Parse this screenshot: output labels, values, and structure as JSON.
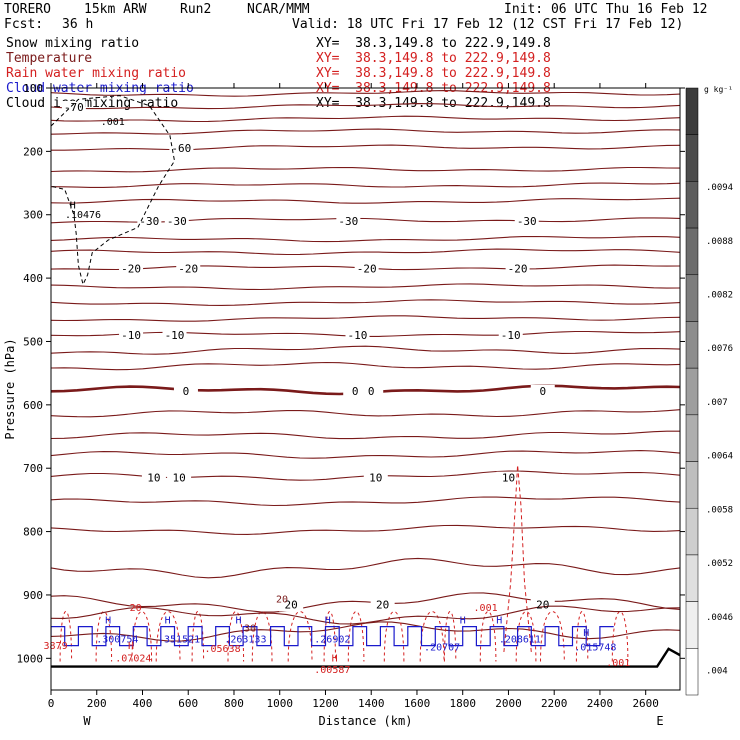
{
  "header": {
    "model": "TORERO",
    "resolution": "15km ARW",
    "run": "Run2",
    "center": "NCAR/MMM",
    "init": "Init: 06 UTC Thu 16 Feb 12",
    "fcst_label": "Fcst:",
    "fcst_value": "36 h",
    "valid": "Valid: 18 UTC Fri 17 Feb 12 (12 CST Fri 17 Feb 12)"
  },
  "colors": {
    "snow": "#000000",
    "temperature": "#7a1a1a",
    "rain": "#d42020",
    "cloud_water": "#1a1acc",
    "cloud_ice": "#000000"
  },
  "fields": [
    {
      "name": "Snow mixing ratio",
      "xy": "XY=  38.3,149.8 to 222.9,149.8",
      "color_key": "snow"
    },
    {
      "name": "Temperature",
      "xy": "XY=  38.3,149.8 to 222.9,149.8",
      "color_key": "temperature"
    },
    {
      "name": "Rain water mixing ratio",
      "xy": "XY=  38.3,149.8 to 222.9,149.8",
      "color_key": "rain"
    },
    {
      "name": "Cloud water mixing ratio",
      "xy": "XY=  38.3,149.8 to 222.9,149.8",
      "color_key": "cloud_water"
    },
    {
      "name": "Cloud ice mixing ratio",
      "xy": "XY=  38.3,149.8 to 222.9,149.8",
      "color_key": "cloud_ice"
    }
  ],
  "chart_data": {
    "type": "cross-section contour",
    "xlabel": "Distance (km)",
    "ylabel": "Pressure (hPa)",
    "xlim": [
      0,
      2750
    ],
    "ylim": [
      1050,
      100
    ],
    "x_ticks": [
      0,
      200,
      400,
      600,
      800,
      1000,
      1200,
      1400,
      1600,
      1800,
      2000,
      2200,
      2400,
      2600
    ],
    "y_ticks": [
      100,
      200,
      300,
      400,
      500,
      600,
      700,
      800,
      900,
      1000
    ],
    "x_end_labels": {
      "left": "W",
      "right": "E"
    },
    "temperature_contours": [
      {
        "level": -70,
        "p": 130,
        "label_at": [
          100
        ]
      },
      {
        "level": -60,
        "p": 195,
        "label_at": [
          570
        ]
      },
      {
        "level": -30,
        "p": 310,
        "label_at": [
          430,
          550,
          1300,
          2080
        ]
      },
      {
        "level": -20,
        "p": 385,
        "label_at": [
          350,
          600,
          1380,
          2040
        ]
      },
      {
        "level": -10,
        "p": 490,
        "label_at": [
          350,
          540,
          1340,
          2010
        ]
      },
      {
        "level": 0,
        "p": 578,
        "label_at": [
          590,
          1330,
          1400,
          2150
        ]
      },
      {
        "level": 10,
        "p": 715,
        "label_at": [
          450,
          560,
          1420,
          2000
        ]
      },
      {
        "level": 20,
        "p": 915,
        "label_at": [
          1050,
          1450,
          2150
        ]
      }
    ],
    "temperature_other_levels": [
      {
        "p": 110
      },
      {
        "p": 150
      },
      {
        "p": 170
      },
      {
        "p": 230
      },
      {
        "p": 255
      },
      {
        "p": 280
      },
      {
        "p": 340
      },
      {
        "p": 360
      },
      {
        "p": 415
      },
      {
        "p": 440
      },
      {
        "p": 465
      },
      {
        "p": 515
      },
      {
        "p": 540
      },
      {
        "p": 615
      },
      {
        "p": 650
      },
      {
        "p": 680
      },
      {
        "p": 755
      },
      {
        "p": 800
      },
      {
        "p": 860
      },
      {
        "p": 960
      }
    ],
    "annotations": [
      {
        "text": ".001",
        "x": 270,
        "p": 158,
        "color_key": "snow"
      },
      {
        "text": "H",
        "x": 95,
        "p": 290,
        "color_key": "snow"
      },
      {
        "text": ".10476",
        "x": 140,
        "p": 305,
        "color_key": "snow"
      },
      {
        "text": ".001",
        "x": 1900,
        "p": 925,
        "color_key": "rain"
      },
      {
        "text": ".001",
        "x": 2480,
        "p": 1012,
        "color_key": "rain"
      },
      {
        "text": "H",
        "x": 250,
        "p": 945,
        "color_key": "cloud_water"
      },
      {
        "text": ".300754",
        "x": 290,
        "p": 975,
        "color_key": "cloud_water"
      },
      {
        "text": "H",
        "x": 510,
        "p": 945,
        "color_key": "cloud_water"
      },
      {
        "text": ".351521",
        "x": 560,
        "p": 975,
        "color_key": "cloud_water"
      },
      {
        "text": "H",
        "x": 820,
        "p": 945,
        "color_key": "cloud_water"
      },
      {
        "text": ".263133",
        "x": 850,
        "p": 975,
        "color_key": "cloud_water"
      },
      {
        "text": "H",
        "x": 1210,
        "p": 945,
        "color_key": "cloud_water"
      },
      {
        "text": ".26902",
        "x": 1230,
        "p": 975,
        "color_key": "cloud_water"
      },
      {
        "text": "H",
        "x": 1800,
        "p": 945,
        "color_key": "cloud_water"
      },
      {
        "text": ".20707",
        "x": 1710,
        "p": 988,
        "color_key": "cloud_water"
      },
      {
        "text": "H",
        "x": 1960,
        "p": 945,
        "color_key": "cloud_water"
      },
      {
        "text": ".208611",
        "x": 2050,
        "p": 975,
        "color_key": "cloud_water"
      },
      {
        "text": "H",
        "x": 2340,
        "p": 965,
        "color_key": "cloud_water"
      },
      {
        "text": ".015748",
        "x": 2380,
        "p": 988,
        "color_key": "cloud_water"
      },
      {
        "text": "3879",
        "x": 20,
        "p": 985,
        "color_key": "rain"
      },
      {
        "text": "H",
        "x": 350,
        "p": 985,
        "color_key": "rain"
      },
      {
        "text": ".07024",
        "x": 360,
        "p": 1005,
        "color_key": "rain"
      },
      {
        "text": ".05638",
        "x": 750,
        "p": 990,
        "color_key": "rain"
      },
      {
        "text": "H",
        "x": 1240,
        "p": 1005,
        "color_key": "rain"
      },
      {
        "text": ".00587",
        "x": 1230,
        "p": 1023,
        "color_key": "rain"
      },
      {
        "text": "20",
        "x": 370,
        "p": 925,
        "color_key": "rain"
      },
      {
        "text": "30",
        "x": 870,
        "p": 958,
        "color_key": "temperature"
      },
      {
        "text": "20",
        "x": 1010,
        "p": 912,
        "color_key": "temperature"
      }
    ],
    "colorbar": {
      "unit": "g kg⁻¹",
      "labels": [
        ".0094",
        ".0088",
        ".0082",
        ".0076",
        ".007",
        ".0064",
        ".0058",
        ".0052",
        ".0046",
        ".004"
      ]
    }
  }
}
